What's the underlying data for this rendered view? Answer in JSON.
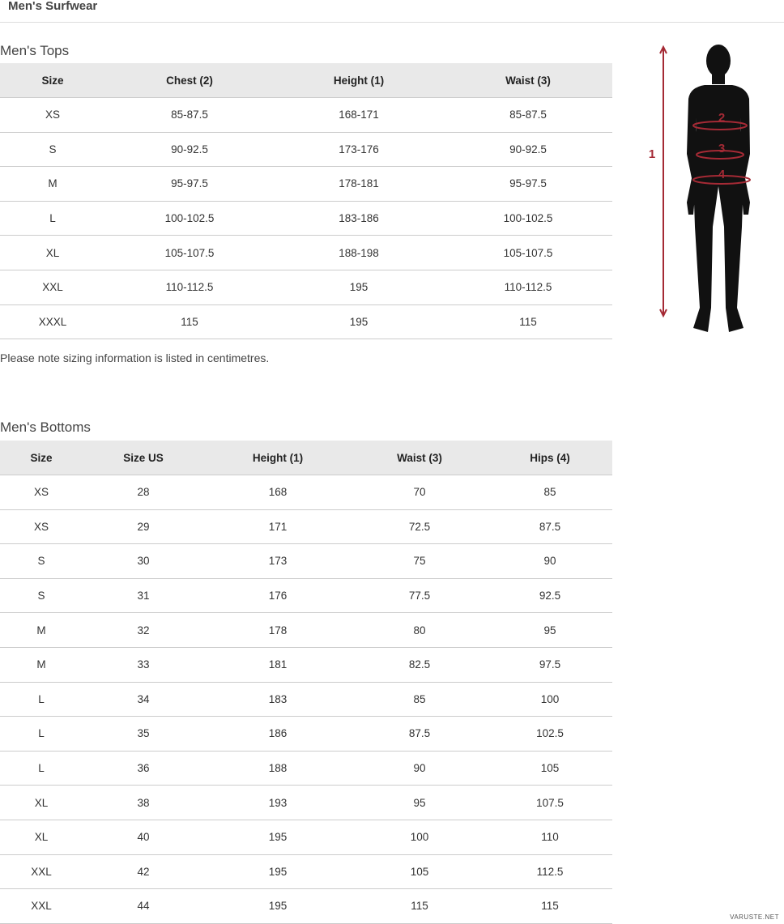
{
  "header": {
    "title": "Men's Surfwear"
  },
  "tops": {
    "title": "Men's Tops",
    "columns": [
      "Size",
      "Chest (2)",
      "Height (1)",
      "Waist (3)"
    ],
    "rows": [
      [
        "XS",
        "85-87.5",
        "168-171",
        "85-87.5"
      ],
      [
        "S",
        "90-92.5",
        "173-176",
        "90-92.5"
      ],
      [
        "M",
        "95-97.5",
        "178-181",
        "95-97.5"
      ],
      [
        "L",
        "100-102.5",
        "183-186",
        "100-102.5"
      ],
      [
        "XL",
        "105-107.5",
        "188-198",
        "105-107.5"
      ],
      [
        "XXL",
        "110-112.5",
        "195",
        "110-112.5"
      ],
      [
        "XXXL",
        "115",
        "195",
        "115"
      ]
    ],
    "note": "Please note sizing information is listed in centimetres."
  },
  "figure": {
    "labels": [
      "1",
      "2",
      "3",
      "4"
    ]
  },
  "bottoms": {
    "title": "Men's Bottoms",
    "columns": [
      "Size",
      "Size US",
      "Height (1)",
      "Waist (3)",
      "Hips (4)"
    ],
    "rows": [
      [
        "XS",
        "28",
        "168",
        "70",
        "85"
      ],
      [
        "XS",
        "29",
        "171",
        "72.5",
        "87.5"
      ],
      [
        "S",
        "30",
        "173",
        "75",
        "90"
      ],
      [
        "S",
        "31",
        "176",
        "77.5",
        "92.5"
      ],
      [
        "M",
        "32",
        "178",
        "80",
        "95"
      ],
      [
        "M",
        "33",
        "181",
        "82.5",
        "97.5"
      ],
      [
        "L",
        "34",
        "183",
        "85",
        "100"
      ],
      [
        "L",
        "35",
        "186",
        "87.5",
        "102.5"
      ],
      [
        "L",
        "36",
        "188",
        "90",
        "105"
      ],
      [
        "XL",
        "38",
        "193",
        "95",
        "107.5"
      ],
      [
        "XL",
        "40",
        "195",
        "100",
        "110"
      ],
      [
        "XXL",
        "42",
        "195",
        "105",
        "112.5"
      ],
      [
        "XXL",
        "44",
        "195",
        "115",
        "115"
      ]
    ]
  },
  "watermark": "VARUSTE.NET"
}
